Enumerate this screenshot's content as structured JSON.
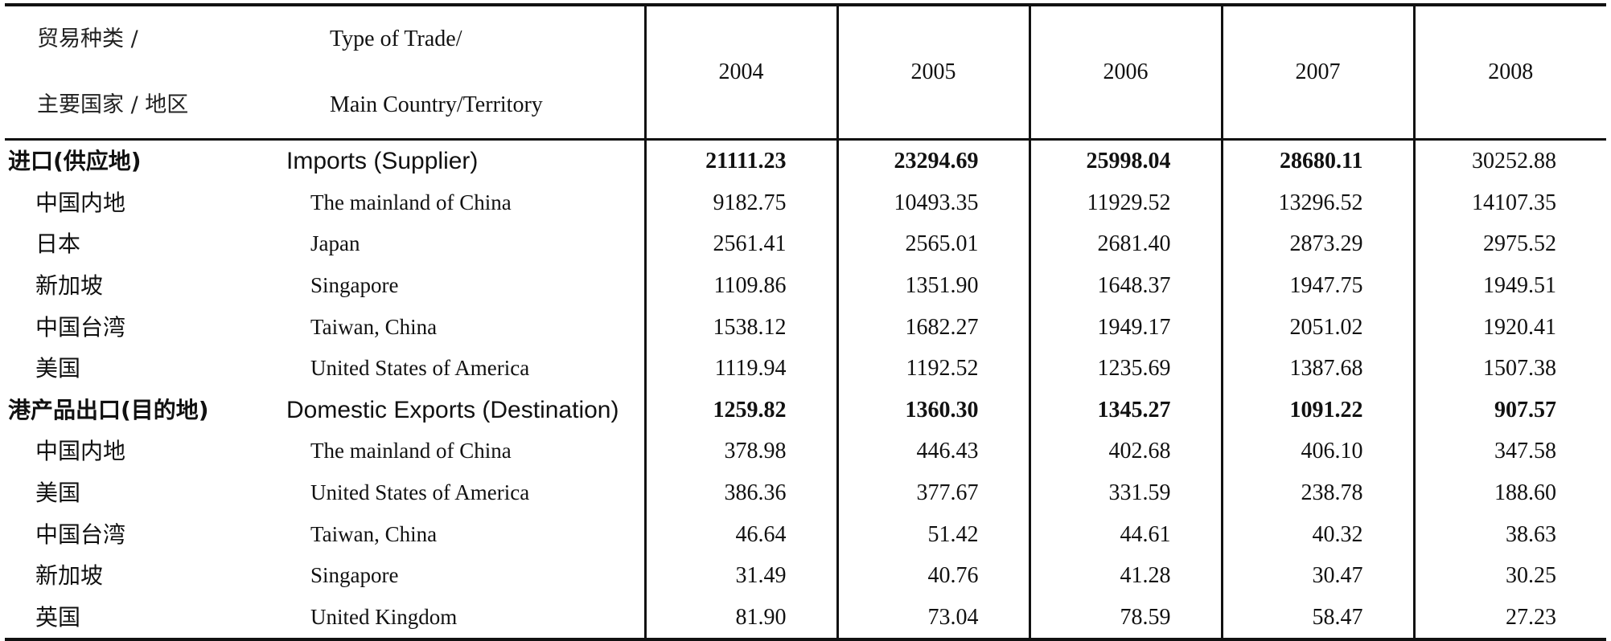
{
  "header": {
    "cn_line1": "贸易种类 /",
    "cn_line2": "主要国家 / 地区",
    "en_line1": "Type of Trade/",
    "en_line2": "Main Country/Territory",
    "years": [
      "2004",
      "2005",
      "2006",
      "2007",
      "2008"
    ]
  },
  "rows": [
    {
      "cn": "进口(供应地)",
      "en": "Imports (Supplier)",
      "values": [
        "21111.23",
        "23294.69",
        "25998.04",
        "28680.11",
        "30252.88"
      ]
    },
    {
      "cn": "中国内地",
      "en": "The mainland of China",
      "values": [
        "9182.75",
        "10493.35",
        "11929.52",
        "13296.52",
        "14107.35"
      ]
    },
    {
      "cn": "日本",
      "en": "Japan",
      "values": [
        "2561.41",
        "2565.01",
        "2681.40",
        "2873.29",
        "2975.52"
      ]
    },
    {
      "cn": "新加坡",
      "en": "Singapore",
      "values": [
        "1109.86",
        "1351.90",
        "1648.37",
        "1947.75",
        "1949.51"
      ]
    },
    {
      "cn": "中国台湾",
      "en": "Taiwan, China",
      "values": [
        "1538.12",
        "1682.27",
        "1949.17",
        "2051.02",
        "1920.41"
      ]
    },
    {
      "cn": "美国",
      "en": "United States of America",
      "values": [
        "1119.94",
        "1192.52",
        "1235.69",
        "1387.68",
        "1507.38"
      ]
    },
    {
      "cn": "港产品出口(目的地)",
      "en": "Domestic Exports (Destination)",
      "values": [
        "1259.82",
        "1360.30",
        "1345.27",
        "1091.22",
        "907.57"
      ]
    },
    {
      "cn": "中国内地",
      "en": "The mainland of China",
      "values": [
        "378.98",
        "446.43",
        "402.68",
        "406.10",
        "347.58"
      ]
    },
    {
      "cn": "美国",
      "en": "United States of America",
      "values": [
        "386.36",
        "377.67",
        "331.59",
        "238.78",
        "188.60"
      ]
    },
    {
      "cn": "中国台湾",
      "en": "Taiwan, China",
      "values": [
        "46.64",
        "51.42",
        "44.61",
        "40.32",
        "38.63"
      ]
    },
    {
      "cn": "新加坡",
      "en": "Singapore",
      "values": [
        "31.49",
        "40.76",
        "41.28",
        "30.47",
        "30.25"
      ]
    },
    {
      "cn": "英国",
      "en": "United Kingdom",
      "values": [
        "81.90",
        "73.04",
        "78.59",
        "58.47",
        "27.23"
      ]
    }
  ]
}
